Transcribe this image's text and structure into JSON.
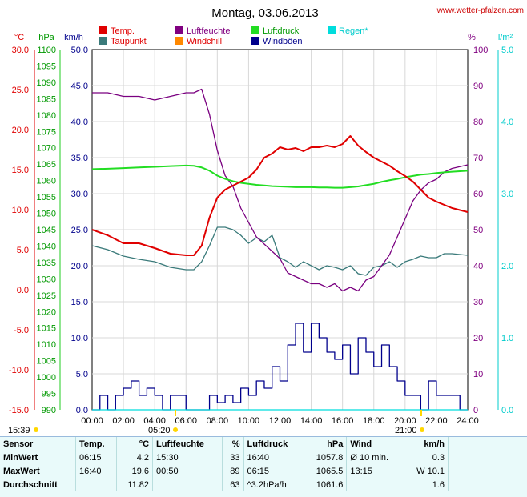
{
  "header": {
    "title": "Montag, 03.06.2013",
    "source": "www.wetter-pfalzen.com"
  },
  "axes": {
    "unit_labels": [
      "°C",
      "hPa",
      "km/h",
      "%",
      "l/m²"
    ],
    "temp_ticks": [
      "30.0",
      "25.0",
      "20.0",
      "15.0",
      "10.0",
      "5.0",
      "0.0",
      "-5.0",
      "-10.0",
      "-15.0"
    ],
    "pressure_ticks": [
      "1100",
      "1095",
      "1090",
      "1085",
      "1080",
      "1075",
      "1070",
      "1065",
      "1060",
      "1055",
      "1050",
      "1045",
      "1040",
      "1035",
      "1030",
      "1025",
      "1020",
      "1015",
      "1010",
      "1005",
      "1000",
      "995",
      "990"
    ],
    "wind_ticks": [
      "50.0",
      "45.0",
      "40.0",
      "35.0",
      "30.0",
      "25.0",
      "20.0",
      "15.0",
      "10.0",
      "5.0",
      "0.0"
    ],
    "humidity_ticks": [
      "100",
      "90",
      "80",
      "70",
      "60",
      "50",
      "40",
      "30",
      "20",
      "10",
      "0"
    ],
    "rain_ticks": [
      "5.0",
      "4.0",
      "3.0",
      "2.0",
      "1.0",
      "0.0"
    ],
    "time_ticks": [
      "00:00",
      "02:00",
      "04:00",
      "06:00",
      "08:00",
      "10:00",
      "12:00",
      "14:00",
      "16:00",
      "18:00",
      "20:00",
      "22:00",
      "24:00"
    ]
  },
  "sun": {
    "moonrise": "15:39",
    "sunrise": "05:20",
    "sunset": "21:00"
  },
  "colors": {
    "temp": "#e00000",
    "dewpoint": "#3a7a7a",
    "humidity": "#7a0080",
    "windchill": "#ff8800",
    "pressure": "#22dd22",
    "wind": "#00008c",
    "gust": "#00008c",
    "rain": "#00dddd"
  },
  "chart_data": {
    "type": "line",
    "x_unit": "hours",
    "x_range": [
      0,
      24
    ],
    "legend": [
      {
        "name": "Temp.",
        "color": "#e00000"
      },
      {
        "name": "Luftfeuchte",
        "color": "#800080"
      },
      {
        "name": "Luftdruck",
        "color": "#22cc22"
      },
      {
        "name": "Regen*",
        "color": "#00dddd"
      },
      {
        "name": "Taupunkt",
        "color": "#3a7a7a"
      },
      {
        "name": "Windchill",
        "color": "#ff8800"
      },
      {
        "name": "Windböen",
        "color": "#00008c"
      }
    ],
    "series": [
      {
        "name": "Temp.",
        "axis": "temp",
        "ylim": [
          -15,
          30
        ],
        "x": [
          0,
          1,
          2,
          3,
          4,
          5,
          6,
          6.5,
          7,
          7.5,
          8,
          8.5,
          9,
          9.5,
          10,
          10.5,
          11,
          11.5,
          12,
          12.5,
          13,
          13.5,
          14,
          14.5,
          15,
          15.5,
          16,
          16.5,
          17,
          17.5,
          18,
          18.5,
          19,
          19.5,
          20,
          20.5,
          21,
          21.5,
          22,
          22.5,
          23,
          24
        ],
        "y": [
          7.5,
          6.8,
          5.8,
          5.8,
          5.2,
          4.5,
          4.3,
          4.3,
          5.5,
          9.0,
          11.5,
          12.5,
          13.0,
          13.5,
          14.0,
          15.0,
          16.5,
          17.0,
          17.8,
          17.5,
          17.7,
          17.3,
          17.8,
          17.8,
          18.0,
          17.8,
          18.2,
          19.2,
          18.0,
          17.2,
          16.5,
          16.0,
          15.5,
          14.8,
          14.2,
          13.5,
          12.5,
          11.5,
          11.0,
          10.6,
          10.2,
          9.7
        ]
      },
      {
        "name": "Taupunkt",
        "axis": "temp",
        "ylim": [
          -15,
          30
        ],
        "x": [
          0,
          1,
          2,
          3,
          4,
          5,
          6,
          6.5,
          7,
          7.5,
          8,
          8.5,
          9,
          9.5,
          10,
          10.5,
          11,
          11.5,
          12,
          12.5,
          13,
          13.5,
          14,
          14.5,
          15,
          15.5,
          16,
          16.5,
          17,
          17.5,
          18,
          18.5,
          19,
          19.5,
          20,
          20.5,
          21,
          21.5,
          22,
          22.5,
          23,
          24
        ],
        "y": [
          5.5,
          5.0,
          4.2,
          3.8,
          3.5,
          2.8,
          2.5,
          2.5,
          3.5,
          5.5,
          7.8,
          7.8,
          7.5,
          6.8,
          5.8,
          6.5,
          6.0,
          6.8,
          4.0,
          3.5,
          2.8,
          3.5,
          3.0,
          2.5,
          3.0,
          2.8,
          2.5,
          3.0,
          2.0,
          1.8,
          2.8,
          3.0,
          3.5,
          2.8,
          3.5,
          3.8,
          4.2,
          4.0,
          4.0,
          4.5,
          4.5,
          4.3
        ]
      },
      {
        "name": "Luftfeuchte",
        "axis": "humidity",
        "ylim": [
          0,
          100
        ],
        "x": [
          0,
          1,
          2,
          3,
          4,
          5,
          6,
          6.5,
          7,
          7.5,
          8,
          8.5,
          9,
          9.5,
          10,
          10.5,
          11,
          11.5,
          12,
          12.5,
          13,
          13.5,
          14,
          14.5,
          15,
          15.5,
          16,
          16.5,
          17,
          17.5,
          18,
          18.5,
          19,
          19.5,
          20,
          20.5,
          21,
          21.5,
          22,
          22.5,
          23,
          24
        ],
        "y": [
          88,
          88,
          87,
          87,
          86,
          87,
          88,
          88,
          89,
          82,
          72,
          65,
          62,
          56,
          52,
          48,
          46,
          44,
          42,
          38,
          37,
          36,
          35,
          35,
          34,
          35,
          33,
          34,
          33,
          36,
          37,
          40,
          43,
          48,
          53,
          58,
          61,
          63,
          64,
          66,
          67,
          68
        ]
      },
      {
        "name": "Luftdruck",
        "axis": "pressure",
        "ylim": [
          990,
          1100
        ],
        "x": [
          0,
          1,
          2,
          3,
          4,
          5,
          6,
          6.5,
          7,
          7.5,
          8,
          8.5,
          9,
          9.5,
          10,
          10.5,
          11,
          11.5,
          12,
          12.5,
          13,
          13.5,
          14,
          14.5,
          15,
          15.5,
          16,
          16.5,
          17,
          17.5,
          18,
          18.5,
          19,
          19.5,
          20,
          20.5,
          21,
          21.5,
          22,
          22.5,
          23,
          24
        ],
        "y": [
          1063.5,
          1063.6,
          1063.8,
          1064.0,
          1064.2,
          1064.4,
          1064.6,
          1064.5,
          1064.0,
          1063.0,
          1061.5,
          1060.5,
          1059.8,
          1059.3,
          1059.0,
          1058.7,
          1058.5,
          1058.3,
          1058.2,
          1058.1,
          1058.0,
          1058.0,
          1058.0,
          1057.9,
          1057.9,
          1057.8,
          1057.8,
          1058.0,
          1058.2,
          1058.6,
          1059.0,
          1059.6,
          1060.1,
          1060.5,
          1061.0,
          1061.4,
          1061.8,
          1062.0,
          1062.3,
          1062.5,
          1062.7,
          1063.0
        ]
      },
      {
        "name": "Windböen",
        "axis": "wind",
        "ylim": [
          0,
          50
        ],
        "x": [
          0,
          0.5,
          1,
          1.5,
          2,
          2.5,
          3,
          3.5,
          4,
          4.5,
          5,
          5.5,
          6,
          6.5,
          7,
          7.5,
          8,
          8.5,
          9,
          9.5,
          10,
          10.5,
          11,
          11.5,
          12,
          12.5,
          13,
          13.5,
          14,
          14.5,
          15,
          15.5,
          16,
          16.5,
          17,
          17.5,
          18,
          18.5,
          19,
          19.5,
          20,
          20.5,
          21,
          21.5,
          22,
          22.5,
          23,
          23.5,
          24
        ],
        "y": [
          0,
          2,
          0,
          2,
          3,
          4,
          2,
          3,
          2,
          0,
          2,
          2,
          0,
          0,
          0,
          2,
          1,
          2,
          1,
          3,
          2,
          4,
          3,
          6,
          4,
          9,
          12,
          8,
          12,
          10,
          8,
          7,
          9,
          5,
          10,
          8,
          6,
          9,
          6,
          4,
          2,
          2,
          0,
          4,
          2,
          2,
          2,
          0,
          0
        ]
      },
      {
        "name": "Regen*",
        "axis": "rain",
        "ylim": [
          0,
          5
        ],
        "x": [
          0,
          24
        ],
        "y": [
          0,
          0
        ]
      }
    ]
  },
  "stats": {
    "headers": [
      "Sensor",
      "Temp.",
      "°C",
      "Luftfeuchte",
      "%",
      "Luftdruck",
      "hPa",
      "Wind",
      "km/h"
    ],
    "rows": [
      {
        "label": "MinWert",
        "t_time": "06:15",
        "t_val": "4.2",
        "h_time": "15:30",
        "h_val": "33",
        "p_time": "16:40",
        "p_val": "1057.8",
        "w_time": "Ø 10 min.",
        "w_val": "0.3"
      },
      {
        "label": "MaxWert",
        "t_time": "16:40",
        "t_val": "19.6",
        "h_time": "00:50",
        "h_val": "89",
        "p_time": "06:15",
        "p_val": "1065.5",
        "w_time": "13:15",
        "w_val": "W 10.1"
      },
      {
        "label": "Durchschnitt",
        "t_time": "",
        "t_val": "11.82",
        "h_time": "",
        "h_val": "63",
        "p_time": "^3.2hPa/h",
        "p_val": "1061.6",
        "w_time": "",
        "w_val": "1.6"
      }
    ]
  }
}
